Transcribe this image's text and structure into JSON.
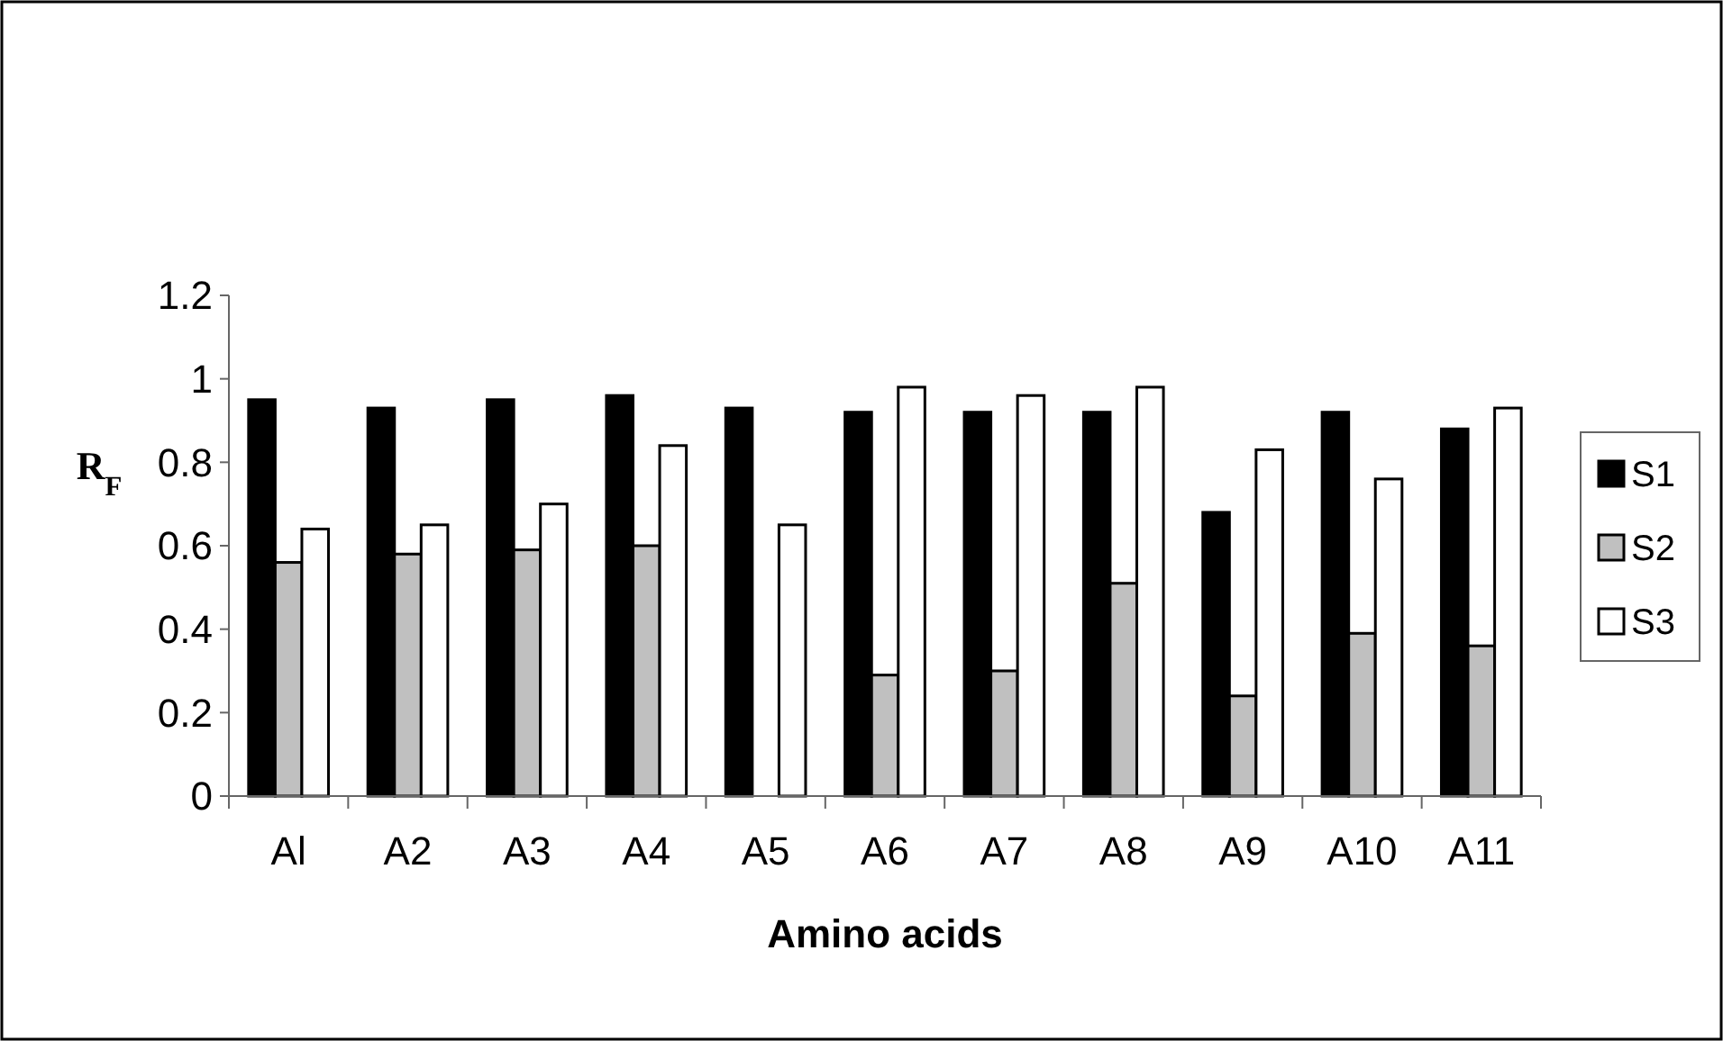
{
  "chart_data": {
    "type": "bar",
    "xlabel": "Amino acids",
    "ylabel": "R$_{F}$",
    "categories": [
      "Al",
      "A2",
      "A3",
      "A4",
      "A5",
      "A6",
      "A7",
      "A8",
      "A9",
      "A10",
      "A11"
    ],
    "series": [
      {
        "name": "S1",
        "color": "#000000",
        "values": [
          0.95,
          0.93,
          0.95,
          0.96,
          0.93,
          0.92,
          0.92,
          0.92,
          0.68,
          0.92,
          0.88
        ]
      },
      {
        "name": "S2",
        "color": "#c0c0c0",
        "values": [
          0.56,
          0.58,
          0.59,
          0.6,
          null,
          0.29,
          0.3,
          0.51,
          0.24,
          0.39,
          0.36
        ]
      },
      {
        "name": "S3",
        "color": "#ffffff",
        "values": [
          0.64,
          0.65,
          0.7,
          0.84,
          0.65,
          0.98,
          0.96,
          0.98,
          0.83,
          0.76,
          0.93
        ]
      }
    ],
    "ylim": [
      0,
      1.2
    ],
    "yticks": [
      0,
      0.2,
      0.4,
      0.6,
      0.8,
      1,
      1.2
    ],
    "legend": "right",
    "grid": false
  }
}
